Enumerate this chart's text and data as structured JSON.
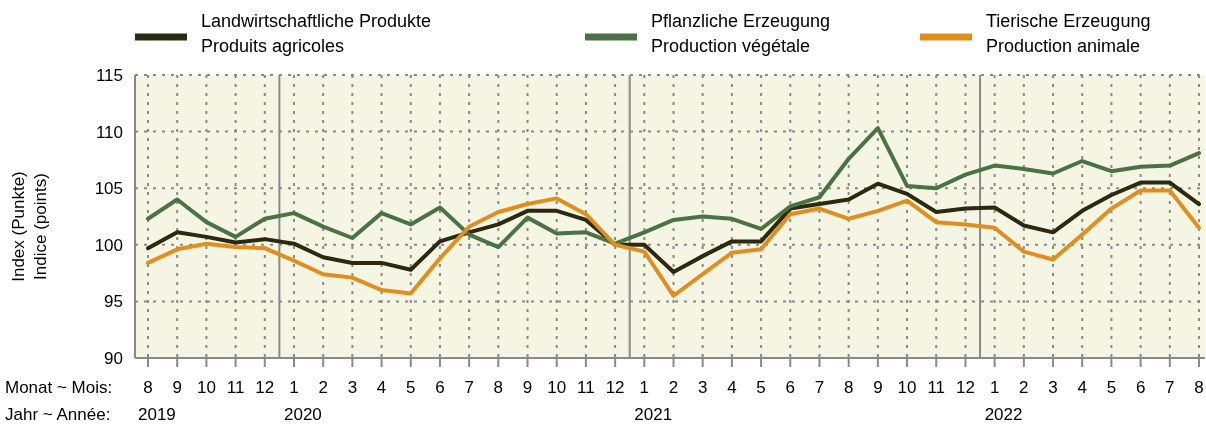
{
  "chart_data": {
    "type": "line",
    "ylabel": "Index (Punkte)\nIndice (points)",
    "categories": [
      "8\n2019",
      "9",
      "10",
      "11",
      "12",
      "1\n2020",
      "2",
      "3",
      "4",
      "5",
      "6",
      "7",
      "8",
      "9",
      "10",
      "11",
      "12",
      "1\n2021",
      "2",
      "3",
      "4",
      "5",
      "6",
      "7",
      "8",
      "9",
      "10",
      "11",
      "12",
      "1\n2022",
      "2",
      "3",
      "4",
      "5",
      "6",
      "7",
      "8"
    ],
    "series": [
      {
        "name": "Landwirtschaftliche Produkte\nProduits agricoles",
        "color": "#2b2a10",
        "values": [
          99.7,
          101.1,
          100.7,
          100.2,
          100.5,
          100.1,
          98.9,
          98.4,
          98.4,
          97.8,
          100.3,
          101.1,
          101.8,
          103.0,
          103.0,
          102.2,
          100.0,
          100.0,
          97.6,
          99.0,
          100.3,
          100.3,
          103.2,
          103.6,
          104.0,
          105.4,
          104.5,
          102.9,
          103.2,
          103.3,
          101.7,
          101.1,
          103.0,
          104.4,
          105.5,
          105.5,
          103.6
        ]
      },
      {
        "name": "Pflanzliche Erzeugung\nProduction végétale",
        "color": "#4a7244",
        "values": [
          102.3,
          104.0,
          102.0,
          100.7,
          102.3,
          102.8,
          101.6,
          100.6,
          102.8,
          101.8,
          103.3,
          100.9,
          99.8,
          102.4,
          101.0,
          101.1,
          100.1,
          101.1,
          102.2,
          102.5,
          102.3,
          101.4,
          103.4,
          104.2,
          107.6,
          110.3,
          105.2,
          105.0,
          106.2,
          107.0,
          106.7,
          106.3,
          107.4,
          106.5,
          106.9,
          107.0,
          108.1
        ]
      },
      {
        "name": "Tierische Erzeugung\nProduction animale",
        "color": "#e08e1e",
        "values": [
          98.4,
          99.6,
          100.1,
          99.8,
          99.7,
          98.6,
          97.4,
          97.1,
          96.0,
          95.7,
          98.8,
          101.6,
          102.9,
          103.6,
          104.1,
          102.7,
          100.0,
          99.4,
          95.5,
          97.4,
          99.3,
          99.6,
          102.7,
          103.2,
          102.3,
          103.0,
          103.9,
          102.0,
          101.8,
          101.5,
          99.4,
          98.7,
          100.9,
          103.2,
          104.8,
          104.8,
          101.5
        ]
      }
    ],
    "ylim": [
      90,
      115
    ],
    "yticks": [
      90,
      95,
      100,
      105,
      110,
      115
    ],
    "grid": true,
    "legend": "top",
    "marker": "none",
    "line_style": "solid",
    "annotations": [
      "Monat ~ Mois:",
      "Jahr ~ Année:"
    ]
  }
}
